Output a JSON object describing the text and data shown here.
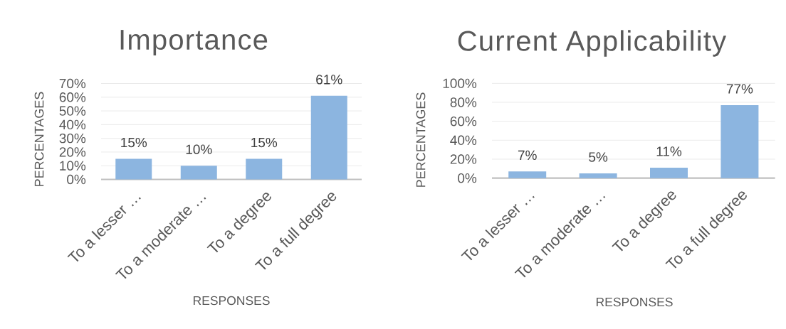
{
  "chart_data": [
    {
      "type": "bar",
      "title": "Importance",
      "xlabel": "RESPONSES",
      "ylabel": "PERCENTAGES",
      "categories": [
        "To a lesser …",
        "To a moderate …",
        "To a degree",
        "To a full degree"
      ],
      "values": [
        15,
        10,
        15,
        61
      ],
      "value_labels": [
        "15%",
        "10%",
        "15%",
        "61%"
      ],
      "color": "#8cb5e0",
      "ylim": [
        0,
        70
      ],
      "yticks": [
        {
          "value": 0,
          "label": "0%"
        },
        {
          "value": 10,
          "label": "10%"
        },
        {
          "value": 20,
          "label": "20%"
        },
        {
          "value": 30,
          "label": "30%"
        },
        {
          "value": 40,
          "label": "40%"
        },
        {
          "value": 50,
          "label": "50%"
        },
        {
          "value": 60,
          "label": "60%"
        },
        {
          "value": 70,
          "label": "70%"
        }
      ],
      "grid": "y"
    },
    {
      "type": "bar",
      "title": "Current Applicability",
      "xlabel": "RESPONSES",
      "ylabel": "PERCENTAGES",
      "categories": [
        "To a lesser …",
        "To a moderate …",
        "To a degree",
        "To a full degree"
      ],
      "values": [
        7,
        5,
        11,
        77
      ],
      "value_labels": [
        "7%",
        "5%",
        "11%",
        "77%"
      ],
      "color": "#8cb5e0",
      "ylim": [
        0,
        100
      ],
      "yticks": [
        {
          "value": 0,
          "label": "0%"
        },
        {
          "value": 20,
          "label": "20%"
        },
        {
          "value": 40,
          "label": "40%"
        },
        {
          "value": 60,
          "label": "60%"
        },
        {
          "value": 80,
          "label": "80%"
        },
        {
          "value": 100,
          "label": "100%"
        }
      ],
      "grid": "y"
    }
  ]
}
